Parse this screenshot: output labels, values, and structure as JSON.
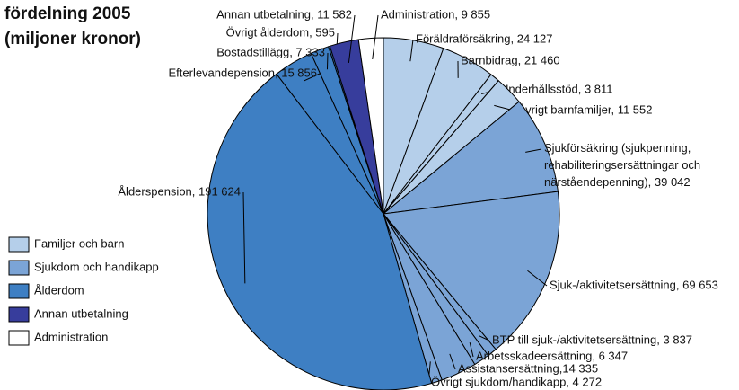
{
  "chart_data": {
    "type": "pie",
    "title": [
      "fördelning 2005",
      "(miljoner kronor)"
    ],
    "legend": [
      {
        "name": "Familjer och barn",
        "color": "#b5cfea"
      },
      {
        "name": "Sjukdom och handikapp",
        "color": "#7ba4d6"
      },
      {
        "name": "Ålderdom",
        "color": "#3e7fc3"
      },
      {
        "name": "Annan utbetalning",
        "color": "#373d9c"
      },
      {
        "name": "Administration",
        "color": "#ffffff"
      }
    ],
    "groups": [
      0,
      0,
      0,
      0,
      1,
      1,
      1,
      1,
      1,
      1,
      2,
      2,
      2,
      2,
      3,
      4
    ],
    "values": [
      24127,
      21460,
      3811,
      11552,
      39042,
      69653,
      3837,
      6347,
      14335,
      4272,
      191624,
      15856,
      7333,
      595,
      11582,
      9855
    ],
    "value_labels": [
      "Föräldraförsäkring, 24 127",
      "Barnbidrag, 21 460",
      "Underhållsstöd, 3 811",
      "Övrigt barnfamiljer, 11 552",
      "Sjukförsäkring (sjukpenning,\nrehabiliteringsersättningar och\nnärståendepenning), 39 042",
      "Sjuk-/aktivitetsersättning, 69 653",
      "BTP till sjuk-/aktivitetsersättning, 3 837",
      "Arbetsskadeersättning, 6 347",
      "Assistansersättning,14 335",
      "Övrigt sjukdom/handikapp, 4 272",
      "Ålderspension, 191 624",
      "Efterlevandepension, 15 856",
      "Bostadstillägg, 7 333",
      "Övrigt ålderdom, 595",
      "Annan utbetalning, 11 582",
      "Administration, 9 855"
    ]
  }
}
